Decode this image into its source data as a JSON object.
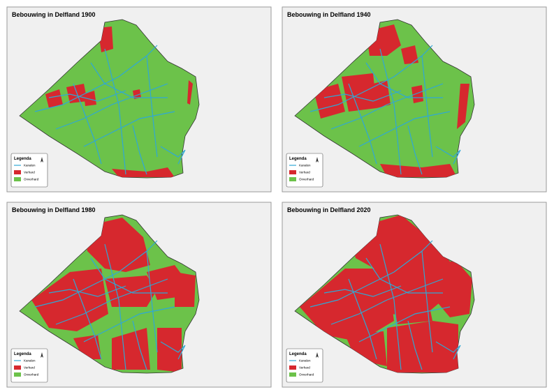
{
  "panels": [
    {
      "title": "Bebouwing in Delfland 1900",
      "legend": {
        "title": "Legenda",
        "items": [
          "Kanalen",
          "Verhard",
          "Onverhard"
        ]
      }
    },
    {
      "title": "Bebouwing in Delfland 1940",
      "legend": {
        "title": "Legenda",
        "items": [
          "Kanalen",
          "Verhard",
          "Onverhard"
        ]
      }
    },
    {
      "title": "Bebouwing in Delfland 1980",
      "legend": {
        "title": "Legenda",
        "items": [
          "Kanalen",
          "Verhard",
          "Onverhard"
        ]
      }
    },
    {
      "title": "Bebouwing in Delfland 2020",
      "legend": {
        "title": "Legenda",
        "items": [
          "Kanalen",
          "Verhard",
          "Onverhard"
        ]
      }
    }
  ]
}
